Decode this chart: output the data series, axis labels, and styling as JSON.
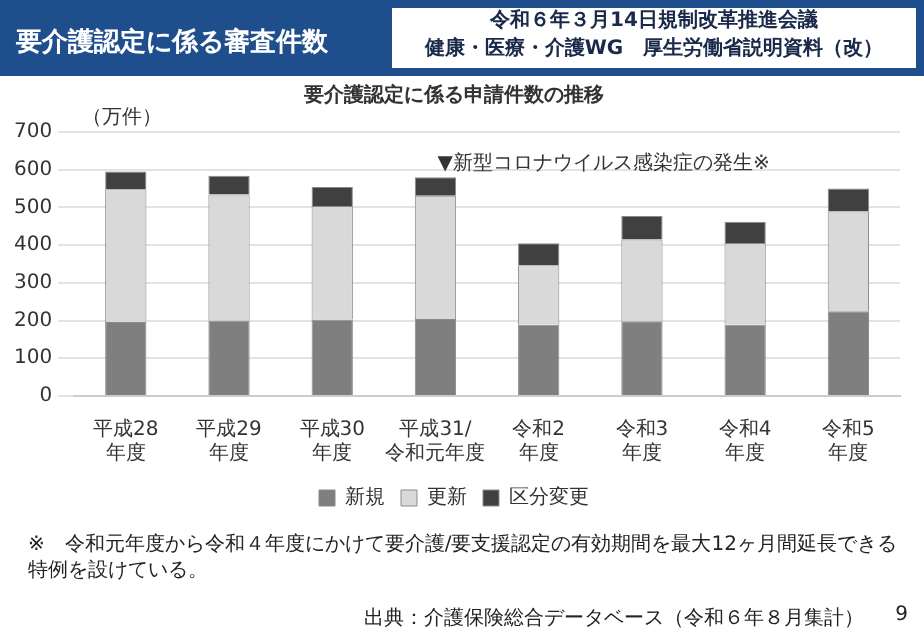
{
  "chart_data": {
    "type": "bar",
    "title": "要介護認定に係る審査件数",
    "subtitle": "要介護認定に係る申請件数の推移",
    "ylabel": "（万件）",
    "categories": [
      "平成28年度",
      "平成29年度",
      "平成30年度",
      "平成31/令和元年度",
      "令和2年度",
      "令和3年度",
      "令和4年度",
      "令和5年度"
    ],
    "stacked": true,
    "series": [
      {
        "name": "新規",
        "color": "#7f7f7f",
        "values": [
          196,
          200,
          203,
          204,
          189,
          198,
          189,
          225
        ]
      },
      {
        "name": "更新",
        "color": "#d9d9d9",
        "values": [
          352,
          334,
          301,
          327,
          158,
          217,
          217,
          264
        ]
      },
      {
        "name": "区分変更",
        "color": "#404040",
        "values": [
          47,
          50,
          50,
          49,
          58,
          62,
          56,
          61
        ]
      }
    ],
    "ylim": [
      0,
      700
    ],
    "yticks": [
      0,
      100,
      200,
      300,
      400,
      500,
      600,
      700
    ],
    "grid": "y",
    "legend": "bottom",
    "annotations": [
      "令和６年３月14日規制改革推進会議",
      "健康・医療・介護WG　厚生労働省説明資料（改）",
      "▼新型コロナウイルス感染症の発生※",
      "※　令和元年度から令和４年度にかけて要介護/要支援認定の有効期間を最大12ヶ月間延長できる特例を設けている。",
      "出典：介護保険総合データベース（令和６年８月集計）",
      "9"
    ]
  }
}
